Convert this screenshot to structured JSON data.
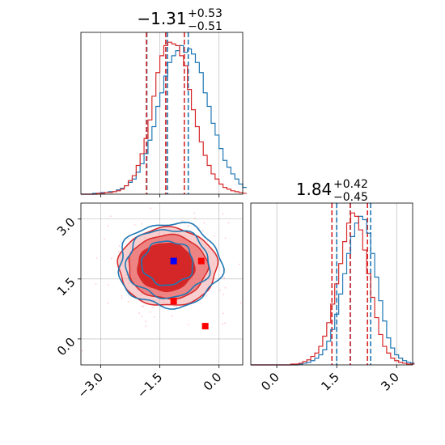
{
  "chart_data": {
    "type": "corner",
    "colors": {
      "blue": "#1f77b4",
      "red": "#d62728",
      "red_fill": "#f08080",
      "grid": "#b0b0b0",
      "scatter": "#ffb6c1"
    },
    "grid": true,
    "titles": {
      "x1": {
        "median": "−1.31",
        "plus": "+0.53",
        "minus": "−0.51"
      },
      "x2": {
        "median": "1.84",
        "plus": "+0.42",
        "minus": "−0.45"
      }
    },
    "ranges": {
      "x1": [
        -3.5,
        0.6
      ],
      "x2": [
        -0.65,
        3.4
      ]
    },
    "ticks": {
      "x1": [
        -3.0,
        -1.5,
        0.0
      ],
      "x1_labels": [
        "−3.0",
        "−1.5",
        "0.0"
      ],
      "x2": [
        0.0,
        1.5,
        3.0
      ],
      "x2_labels": [
        "0.0",
        "1.5",
        "3.0"
      ]
    },
    "quantile_lines": {
      "x1": {
        "blue": [
          -1.83,
          -1.31,
          -0.78
        ],
        "red": [
          -1.84,
          -1.35,
          -0.88
        ]
      },
      "x2": {
        "blue": [
          1.5,
          1.84,
          2.35
        ],
        "red": [
          1.38,
          1.84,
          2.27
        ]
      }
    },
    "hist_x1": {
      "bin_width": 0.1,
      "start": -3.5,
      "blue": [
        0,
        0,
        0,
        0.5,
        0.5,
        1,
        1,
        1.5,
        1.5,
        2.5,
        3.5,
        5,
        7,
        9,
        13,
        18,
        24,
        32,
        40,
        52,
        60,
        70,
        78,
        82,
        85,
        88,
        84,
        86,
        83,
        78,
        72,
        60,
        52,
        42,
        35,
        27,
        20,
        16,
        12,
        9,
        6,
        4
      ],
      "red": [
        0,
        0,
        0,
        0,
        0.5,
        0.5,
        1,
        1,
        1.5,
        2,
        3,
        5,
        8,
        11,
        17,
        24,
        33,
        44,
        58,
        72,
        82,
        88,
        90,
        89,
        88,
        82,
        76,
        62,
        50,
        40,
        31,
        23,
        17,
        12,
        9,
        6,
        4,
        3,
        2,
        1.5,
        1,
        0.5
      ]
    },
    "hist_x2": {
      "bin_width": 0.1,
      "start": -0.65,
      "blue": [
        0,
        0,
        0,
        0,
        0,
        0,
        0,
        0,
        0,
        0,
        0,
        0,
        0.5,
        1,
        1.5,
        2.5,
        4,
        6,
        9,
        14,
        21,
        30,
        42,
        54,
        66,
        76,
        84,
        88,
        86,
        78,
        66,
        52,
        38,
        26,
        16,
        10,
        6,
        4,
        2.5,
        1.5,
        1
      ],
      "red": [
        0,
        0,
        0,
        0,
        0,
        0,
        0,
        0,
        0,
        0,
        0.5,
        0.5,
        1,
        2,
        3,
        5,
        7,
        11,
        17,
        25,
        36,
        48,
        60,
        73,
        84,
        90,
        88,
        80,
        68,
        54,
        40,
        28,
        18,
        11,
        7,
        4,
        2.5,
        1.5,
        1,
        0.5,
        0.5
      ]
    },
    "contours_2d": {
      "blue": [
        {
          "cx": -1.25,
          "cy": 1.85,
          "rx": 1.3,
          "ry": 1.05
        },
        {
          "cx": -1.3,
          "cy": 1.9,
          "rx": 1.05,
          "ry": 0.85
        },
        {
          "cx": -1.3,
          "cy": 1.9,
          "rx": 0.65,
          "ry": 0.55
        }
      ],
      "red": [
        {
          "cx": -1.3,
          "cy": 1.8,
          "rx": 1.25,
          "ry": 0.98
        },
        {
          "cx": -1.3,
          "cy": 1.8,
          "rx": 1.0,
          "ry": 0.8
        },
        {
          "cx": -1.35,
          "cy": 1.8,
          "rx": 0.72,
          "ry": 0.6
        }
      ]
    },
    "markers": {
      "blue": [
        [
          -1.15,
          1.95
        ]
      ],
      "red": [
        [
          -0.45,
          1.95
        ],
        [
          -1.15,
          0.95
        ],
        [
          -0.35,
          0.32
        ]
      ]
    }
  }
}
